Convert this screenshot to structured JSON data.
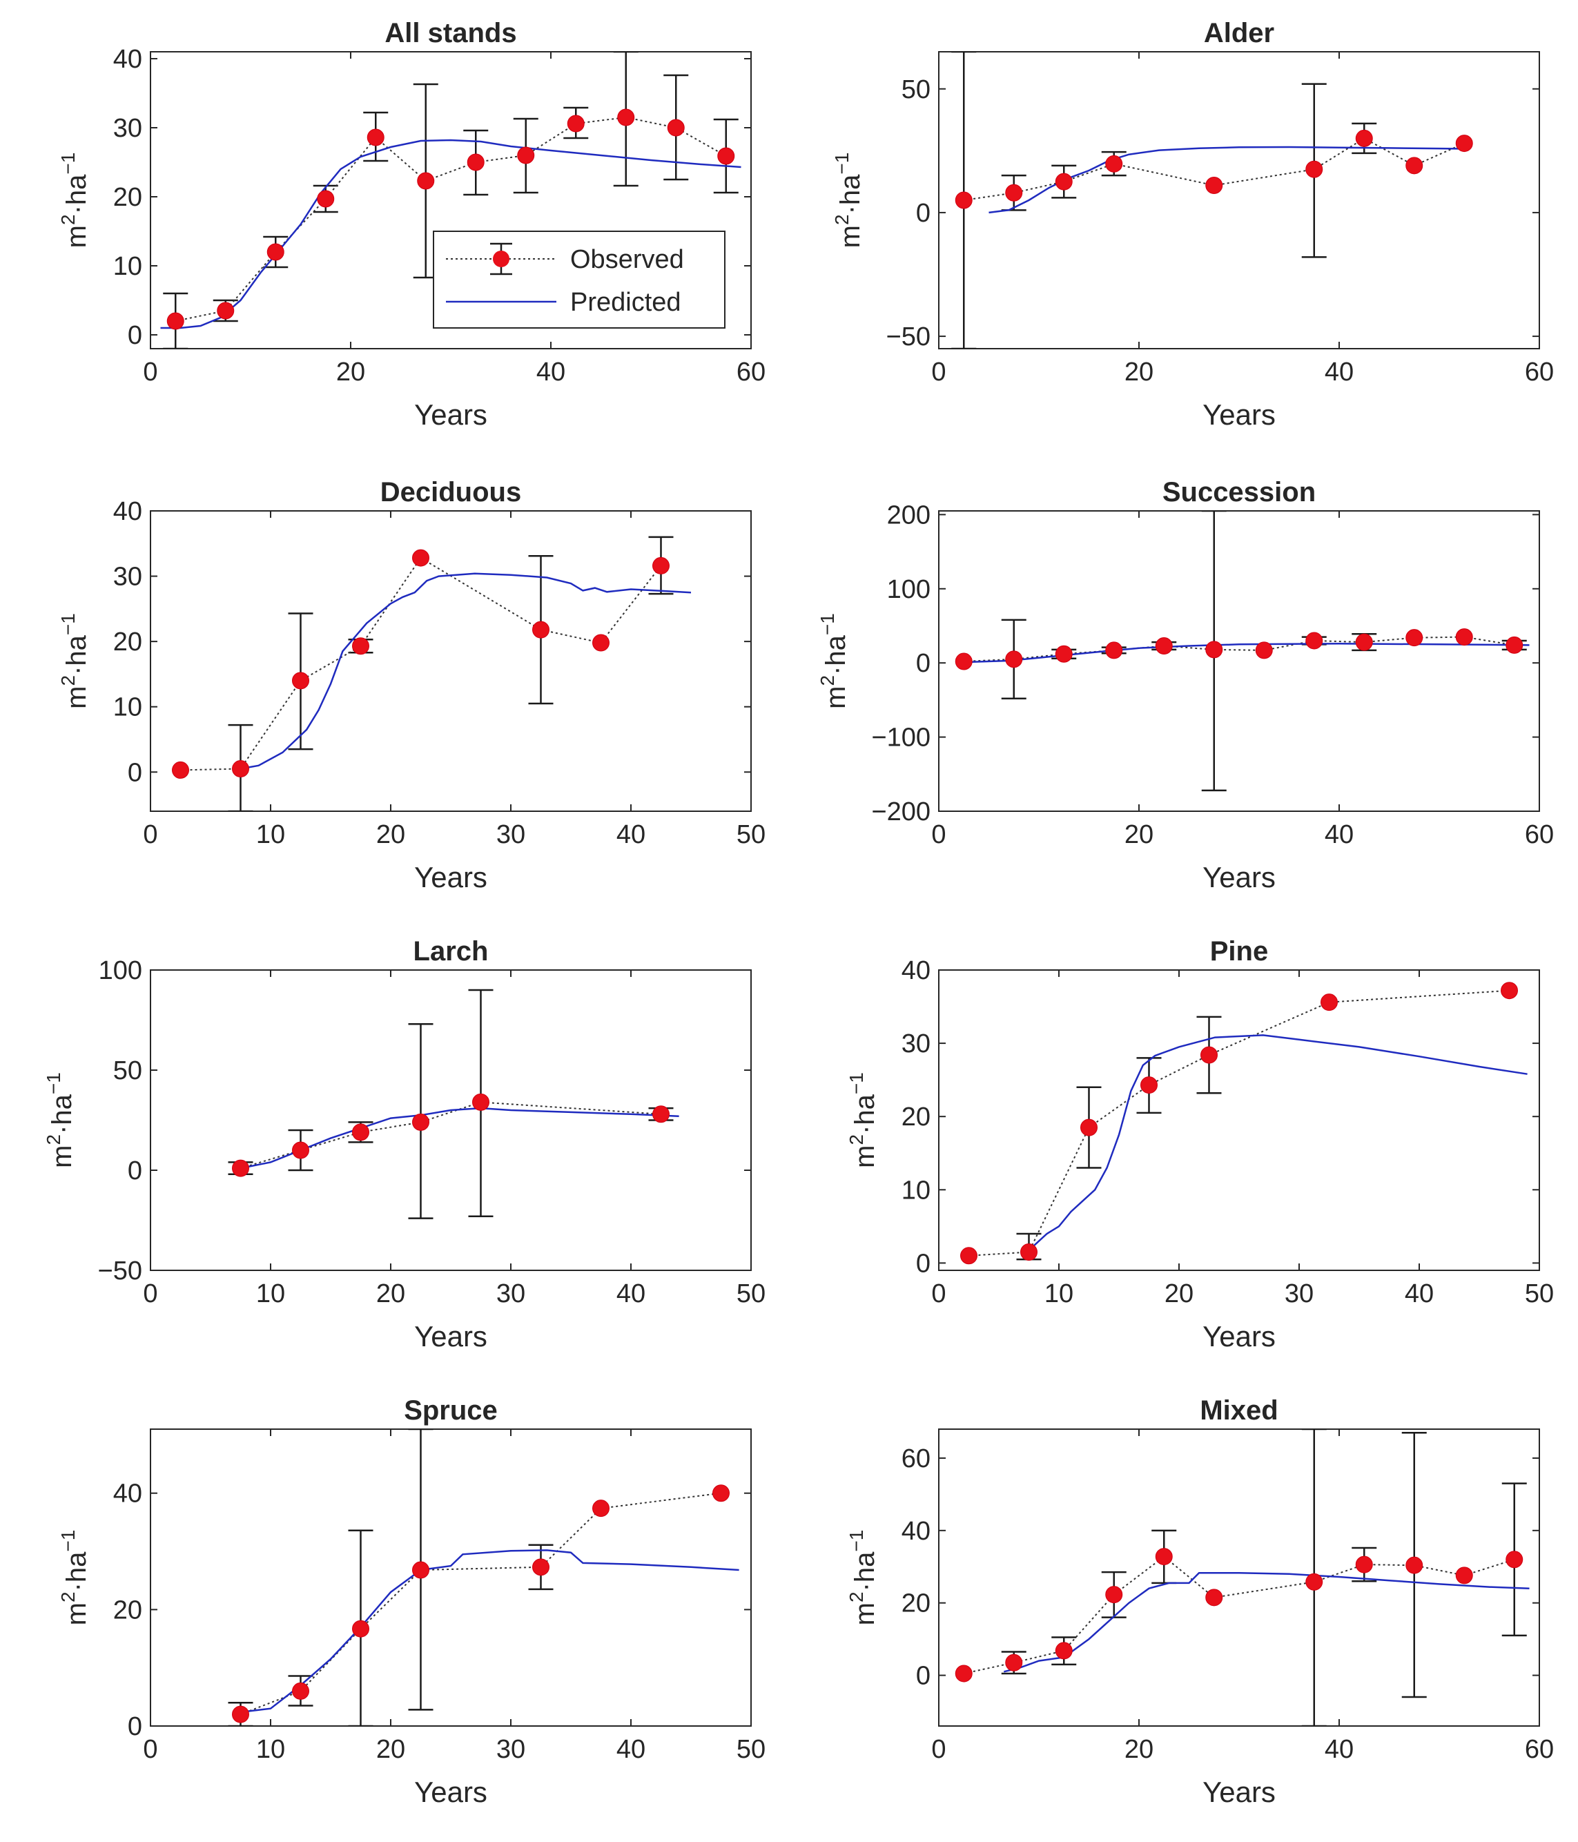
{
  "figure": {
    "y_axis_label": {
      "base": "m",
      "exp1": "2",
      "mid": "·ha",
      "exp2": "−1"
    },
    "legend": {
      "observed_label": "Observed",
      "predicted_label": "Predicted"
    },
    "colors": {
      "observed": "#e8101a",
      "predicted": "#1f2bbf",
      "axis": "#262626",
      "errorbar": "#1a1a1a"
    }
  },
  "chart_data": [
    {
      "type": "line",
      "title": "All stands",
      "xlabel": "Years",
      "ylabel": "m²·ha⁻¹",
      "xlim": [
        0,
        60
      ],
      "ylim": [
        -2,
        41
      ],
      "xticks": [
        0,
        20,
        40,
        60
      ],
      "yticks": [
        0,
        10,
        20,
        30,
        40
      ],
      "has_legend": true,
      "legend_position": "center-right",
      "series": [
        {
          "name": "Observed",
          "x": [
            2.5,
            7.5,
            12.5,
            17.5,
            22.5,
            27.5,
            32.5,
            37.5,
            42.5,
            47.5,
            52.5,
            57.5
          ],
          "y": [
            2,
            3.5,
            12,
            19.7,
            28.6,
            22.3,
            25,
            26,
            30.6,
            31.5,
            30,
            25.9
          ],
          "err_low": [
            -2,
            2,
            9.8,
            17.8,
            25.2,
            8.3,
            20.3,
            20.6,
            28.5,
            21.6,
            22.5,
            20.6
          ],
          "err_high": [
            6,
            5,
            14.2,
            21.6,
            32.2,
            36.3,
            29.6,
            31.3,
            32.9,
            41,
            37.6,
            31.2
          ]
        },
        {
          "name": "Predicted",
          "x": [
            1,
            3,
            5,
            7,
            9,
            11,
            13,
            15,
            17,
            19,
            21,
            24,
            27,
            30,
            33,
            36,
            40,
            45,
            50,
            55,
            59
          ],
          "y": [
            1,
            1,
            1.3,
            2.5,
            5,
            9,
            12.5,
            16,
            20.5,
            24,
            25.8,
            27.2,
            28.1,
            28.2,
            28,
            27.3,
            26.7,
            26,
            25.3,
            24.7,
            24.3
          ]
        }
      ]
    },
    {
      "type": "line",
      "title": "Alder",
      "xlabel": "Years",
      "ylabel": "m²·ha⁻¹",
      "xlim": [
        0,
        60
      ],
      "ylim": [
        -55,
        65
      ],
      "xticks": [
        0,
        20,
        40,
        60
      ],
      "yticks": [
        -50,
        0,
        50
      ],
      "has_legend": false,
      "series": [
        {
          "name": "Observed",
          "x": [
            2.5,
            7.5,
            12.5,
            17.5,
            27.5,
            37.5,
            42.5,
            47.5,
            52.5
          ],
          "y": [
            5,
            8,
            12.5,
            19.7,
            11,
            17.5,
            30,
            19,
            28
          ],
          "err_low": [
            -55,
            1,
            6,
            15,
            null,
            -18,
            24,
            null,
            null
          ],
          "err_high": [
            65,
            15,
            19,
            24.5,
            null,
            52,
            36,
            null,
            null
          ]
        },
        {
          "name": "Predicted",
          "x": [
            5,
            7,
            9,
            11,
            13,
            15,
            17,
            19,
            22,
            26,
            30,
            35,
            40,
            45,
            50,
            52.5
          ],
          "y": [
            0,
            1,
            5,
            10,
            14,
            17,
            21,
            23.5,
            25.2,
            26,
            26.4,
            26.5,
            26.3,
            26.1,
            25.9,
            25.8
          ]
        }
      ]
    },
    {
      "type": "line",
      "title": "Deciduous",
      "xlabel": "Years",
      "ylabel": "m²·ha⁻¹",
      "xlim": [
        0,
        50
      ],
      "ylim": [
        -6,
        40
      ],
      "xticks": [
        0,
        10,
        20,
        30,
        40,
        50
      ],
      "yticks": [
        0,
        10,
        20,
        30,
        40
      ],
      "has_legend": false,
      "series": [
        {
          "name": "Observed",
          "x": [
            2.5,
            7.5,
            12.5,
            17.5,
            22.5,
            32.5,
            37.5,
            42.5
          ],
          "y": [
            0.3,
            0.5,
            14,
            19.3,
            32.8,
            21.8,
            19.8,
            31.6
          ],
          "err_low": [
            null,
            -6,
            3.5,
            18.3,
            null,
            10.5,
            null,
            27.3
          ],
          "err_high": [
            null,
            7.2,
            24.3,
            20.3,
            null,
            33.1,
            null,
            36
          ]
        },
        {
          "name": "Predicted",
          "x": [
            7.5,
            9,
            11,
            13,
            14,
            15,
            16,
            18,
            20,
            21,
            22,
            23,
            24,
            27,
            30,
            33,
            35,
            36,
            37,
            38,
            40,
            43,
            45
          ],
          "y": [
            0.5,
            1,
            3,
            6.5,
            9.5,
            13.5,
            18.5,
            22.8,
            25.8,
            26.8,
            27.5,
            29.3,
            30,
            30.4,
            30.2,
            29.8,
            28.9,
            27.8,
            28.2,
            27.6,
            28,
            27.7,
            27.5
          ]
        }
      ]
    },
    {
      "type": "line",
      "title": "Succession",
      "xlabel": "Years",
      "ylabel": "m²·ha⁻¹",
      "xlim": [
        0,
        60
      ],
      "ylim": [
        -200,
        205
      ],
      "xticks": [
        0,
        20,
        40,
        60
      ],
      "yticks": [
        -200,
        -100,
        0,
        100,
        200
      ],
      "has_legend": false,
      "series": [
        {
          "name": "Observed",
          "x": [
            2.5,
            7.5,
            12.5,
            17.5,
            22.5,
            27.5,
            32.5,
            37.5,
            42.5,
            47.5,
            52.5,
            57.5
          ],
          "y": [
            2,
            5,
            12,
            17,
            23,
            18,
            17,
            30,
            28,
            34,
            35,
            24
          ],
          "err_low": [
            null,
            -48,
            6,
            13,
            18,
            -172,
            null,
            25,
            17,
            null,
            null,
            18
          ],
          "err_high": [
            null,
            58,
            18,
            21,
            28,
            205,
            null,
            35,
            39,
            null,
            null,
            30
          ]
        },
        {
          "name": "Predicted",
          "x": [
            2.5,
            7,
            10,
            13,
            16,
            20,
            25,
            30,
            40,
            50,
            59
          ],
          "y": [
            1,
            3,
            7,
            11,
            15,
            20,
            23,
            25,
            26,
            25,
            24
          ]
        }
      ]
    },
    {
      "type": "line",
      "title": "Larch",
      "xlabel": "Years",
      "ylabel": "m²·ha⁻¹",
      "xlim": [
        0,
        50
      ],
      "ylim": [
        -50,
        100
      ],
      "xticks": [
        0,
        10,
        20,
        30,
        40,
        50
      ],
      "yticks": [
        -50,
        0,
        50,
        100
      ],
      "has_legend": false,
      "series": [
        {
          "name": "Observed",
          "x": [
            7.5,
            12.5,
            17.5,
            22.5,
            27.5,
            42.5
          ],
          "y": [
            1,
            10,
            19,
            24,
            34,
            28
          ],
          "err_low": [
            -2,
            0,
            14,
            -24,
            -23,
            25
          ],
          "err_high": [
            4,
            20,
            24,
            73,
            90,
            31
          ]
        },
        {
          "name": "Predicted",
          "x": [
            7.5,
            10,
            12.5,
            15,
            17.5,
            20,
            22.5,
            25,
            27.5,
            30,
            35,
            40,
            44
          ],
          "y": [
            1,
            4,
            10,
            16,
            21,
            26,
            27.5,
            30,
            31,
            30,
            29,
            28,
            27
          ]
        }
      ]
    },
    {
      "type": "line",
      "title": "Pine",
      "xlabel": "Years",
      "ylabel": "m²·ha⁻¹",
      "xlim": [
        0,
        50
      ],
      "ylim": [
        -1,
        40
      ],
      "xticks": [
        0,
        10,
        20,
        30,
        40,
        50
      ],
      "yticks": [
        0,
        10,
        20,
        30,
        40
      ],
      "has_legend": false,
      "series": [
        {
          "name": "Observed",
          "x": [
            2.5,
            7.5,
            12.5,
            17.5,
            22.5,
            32.5,
            47.5
          ],
          "y": [
            1,
            1.5,
            18.5,
            24.3,
            28.4,
            35.6,
            37.2
          ],
          "err_low": [
            null,
            0.5,
            13,
            20.5,
            23.2,
            null,
            null
          ],
          "err_high": [
            null,
            4,
            24,
            28,
            33.6,
            null,
            null
          ]
        },
        {
          "name": "Predicted",
          "x": [
            7,
            8,
            9,
            10,
            11,
            12,
            13,
            14,
            15,
            16,
            17,
            18,
            20,
            23,
            27,
            30,
            35,
            40,
            45,
            49
          ],
          "y": [
            1,
            2.5,
            4,
            5,
            7,
            8.5,
            10,
            13,
            17.5,
            23.5,
            27,
            28.3,
            29.5,
            30.8,
            31.1,
            30.5,
            29.5,
            28.2,
            26.8,
            25.8
          ]
        }
      ]
    },
    {
      "type": "line",
      "title": "Spruce",
      "xlabel": "Years",
      "ylabel": "m²·ha⁻¹",
      "xlim": [
        0,
        50
      ],
      "ylim": [
        0,
        51
      ],
      "xticks": [
        0,
        10,
        20,
        30,
        40,
        50
      ],
      "yticks": [
        0,
        20,
        40
      ],
      "has_legend": false,
      "series": [
        {
          "name": "Observed",
          "x": [
            7.5,
            12.5,
            17.5,
            22.5,
            32.5,
            37.5,
            47.5
          ],
          "y": [
            2,
            6,
            16.7,
            26.8,
            27.3,
            37.4,
            40
          ],
          "err_low": [
            0,
            3.5,
            0,
            2.8,
            23.5,
            null,
            null
          ],
          "err_high": [
            4,
            8.6,
            33.6,
            51,
            31.1,
            null,
            null
          ]
        },
        {
          "name": "Predicted",
          "x": [
            8,
            10,
            12.5,
            15,
            17.5,
            20,
            22.5,
            25,
            26,
            30,
            33,
            35,
            36,
            40,
            45,
            49
          ],
          "y": [
            2.5,
            3,
            7,
            11.5,
            17,
            23,
            26.8,
            27.5,
            29.5,
            30.1,
            30.2,
            29.8,
            28,
            27.8,
            27.3,
            26.8
          ]
        }
      ]
    },
    {
      "type": "line",
      "title": "Mixed",
      "xlabel": "Years",
      "ylabel": "m²·ha⁻¹",
      "xlim": [
        0,
        60
      ],
      "ylim": [
        -14,
        68
      ],
      "xticks": [
        0,
        20,
        40,
        60
      ],
      "yticks": [
        0,
        20,
        40,
        60
      ],
      "has_legend": false,
      "series": [
        {
          "name": "Observed",
          "x": [
            2.5,
            7.5,
            12.5,
            17.5,
            22.5,
            27.5,
            37.5,
            42.5,
            47.5,
            52.5,
            57.5
          ],
          "y": [
            0.5,
            3.5,
            6.8,
            22.3,
            32.8,
            21.5,
            25.8,
            30.6,
            30.4,
            27.6,
            32
          ],
          "err_low": [
            null,
            0.5,
            3,
            16,
            25.5,
            null,
            -14,
            26,
            -6,
            null,
            11
          ],
          "err_high": [
            null,
            6.5,
            10.5,
            28.5,
            40,
            null,
            68,
            35.2,
            67,
            null,
            53
          ]
        },
        {
          "name": "Predicted",
          "x": [
            6.5,
            8,
            10,
            12.5,
            15,
            17,
            19,
            21,
            23,
            25,
            26,
            30,
            35,
            40,
            45,
            50,
            55,
            59
          ],
          "y": [
            1,
            2,
            4,
            5,
            10,
            15,
            20,
            24,
            25.5,
            25.5,
            28.3,
            28.3,
            28,
            27.2,
            26.2,
            25.2,
            24.4,
            24
          ]
        }
      ]
    }
  ]
}
